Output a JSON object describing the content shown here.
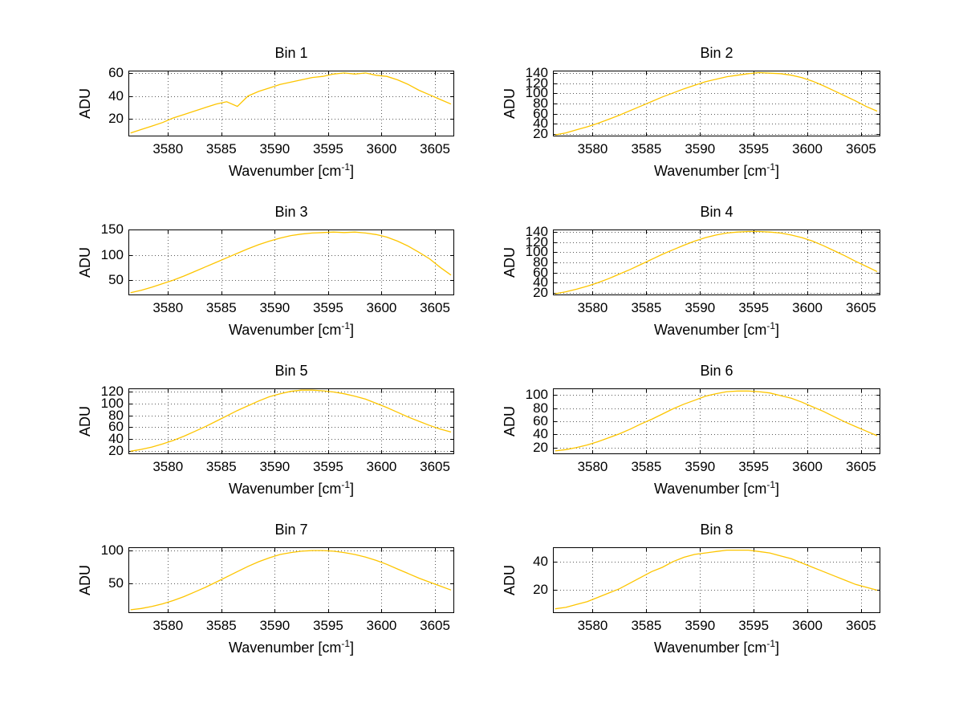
{
  "figure": {
    "background": "#ffffff"
  },
  "colors": {
    "curve": "#fdc500",
    "axis": "#000000",
    "grid": "#5a5a5a",
    "text": "#000000",
    "background": "#ffffff"
  },
  "chart_data": {
    "type": "line",
    "layout": "8 subplots in 4 rows x 2 columns, grid on, no legend",
    "title": "",
    "xlabel": "Wavenumber [cm⁻¹]",
    "xlabel_main": "Wavenumber [cm",
    "xlabel_sup": "-1",
    "xlabel_close": "]",
    "ylabel": "ADU",
    "grid": true,
    "legend": false,
    "xticks": [
      3580,
      3585,
      3590,
      3595,
      3600,
      3605
    ],
    "xlim": [
      3576.3,
      3606.8
    ],
    "x": [
      3576.5,
      3577.5,
      3578.5,
      3579.5,
      3580.5,
      3581.5,
      3582.5,
      3583.5,
      3584.5,
      3585.5,
      3586.5,
      3587.5,
      3588.5,
      3589.5,
      3590.5,
      3591.5,
      3592.5,
      3593.5,
      3594.5,
      3595.5,
      3596.5,
      3597.5,
      3598.5,
      3599.5,
      3600.5,
      3601.5,
      3602.5,
      3603.5,
      3604.5,
      3605.5,
      3606.5
    ],
    "series": [
      {
        "name": "Bin 1",
        "yticks": [
          20,
          40,
          60
        ],
        "ylim": [
          5,
          62
        ],
        "values": [
          8,
          11,
          14,
          17,
          21,
          24,
          27,
          30,
          33,
          35,
          31,
          40,
          44,
          47,
          50,
          52,
          54,
          56,
          57,
          59,
          60,
          59,
          60,
          58,
          57,
          54,
          50,
          45,
          41,
          37,
          33
        ]
      },
      {
        "name": "Bin 2",
        "yticks": [
          20,
          40,
          60,
          80,
          100,
          120,
          140
        ],
        "ylim": [
          15,
          145
        ],
        "values": [
          18,
          22,
          28,
          34,
          41,
          49,
          57,
          66,
          75,
          84,
          93,
          101,
          109,
          116,
          123,
          128,
          133,
          136,
          139,
          141,
          140,
          139,
          136,
          131,
          124,
          115,
          105,
          95,
          85,
          74,
          65
        ]
      },
      {
        "name": "Bin 3",
        "yticks": [
          50,
          100,
          150
        ],
        "ylim": [
          20,
          150
        ],
        "values": [
          25,
          30,
          36,
          43,
          50,
          58,
          67,
          76,
          85,
          94,
          103,
          112,
          120,
          127,
          133,
          138,
          141,
          143,
          144,
          145,
          144,
          145,
          143,
          140,
          135,
          127,
          117,
          105,
          92,
          75,
          60
        ]
      },
      {
        "name": "Bin 4",
        "yticks": [
          20,
          40,
          60,
          80,
          100,
          120,
          140
        ],
        "ylim": [
          15,
          145
        ],
        "values": [
          18,
          22,
          27,
          33,
          40,
          48,
          57,
          66,
          76,
          86,
          96,
          105,
          114,
          122,
          129,
          134,
          138,
          140,
          141,
          141,
          140,
          138,
          134,
          129,
          122,
          113,
          103,
          93,
          82,
          72,
          62
        ]
      },
      {
        "name": "Bin 5",
        "yticks": [
          20,
          40,
          60,
          80,
          100,
          120
        ],
        "ylim": [
          15,
          125
        ],
        "values": [
          20,
          23,
          27,
          32,
          38,
          45,
          53,
          61,
          70,
          79,
          88,
          96,
          104,
          111,
          116,
          120,
          122,
          122,
          121,
          119,
          116,
          112,
          107,
          100,
          93,
          85,
          77,
          70,
          63,
          57,
          52
        ]
      },
      {
        "name": "Bin 6",
        "yticks": [
          20,
          40,
          60,
          80,
          100
        ],
        "ylim": [
          10,
          110
        ],
        "values": [
          15,
          17,
          20,
          24,
          29,
          35,
          41,
          48,
          56,
          63,
          71,
          79,
          86,
          92,
          98,
          102,
          105,
          106,
          106,
          105,
          103,
          99,
          95,
          89,
          82,
          75,
          67,
          59,
          52,
          45,
          38
        ]
      },
      {
        "name": "Bin 7",
        "yticks": [
          50,
          100
        ],
        "ylim": [
          5,
          105
        ],
        "values": [
          10,
          12,
          15,
          19,
          24,
          30,
          37,
          44,
          52,
          60,
          68,
          76,
          83,
          89,
          94,
          97,
          99,
          100,
          100,
          99,
          97,
          94,
          90,
          85,
          79,
          72,
          65,
          58,
          52,
          46,
          40
        ]
      },
      {
        "name": "Bin 8",
        "yticks": [
          20,
          40
        ],
        "ylim": [
          4,
          50
        ],
        "values": [
          7,
          8,
          10,
          12,
          15,
          18,
          21,
          25,
          29,
          33,
          36,
          40,
          43,
          45,
          46,
          47,
          48,
          48,
          48,
          47,
          46,
          44,
          42,
          39,
          36,
          33,
          30,
          27,
          24,
          22,
          20
        ]
      }
    ]
  }
}
